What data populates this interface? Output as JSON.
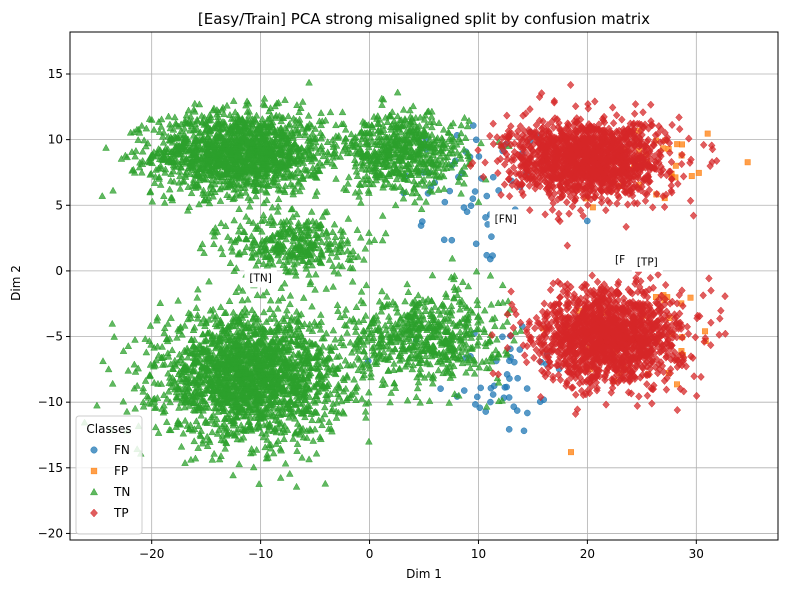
{
  "chart_data": {
    "type": "scatter",
    "title": "[Easy/Train] PCA strong misaligned split by confusion matrix",
    "xlabel": "Dim 1",
    "ylabel": "Dim 2",
    "xlim": [
      -27.5,
      37.5
    ],
    "ylim": [
      -20.5,
      18.2
    ],
    "xticks": [
      -20,
      -10,
      0,
      10,
      20,
      30
    ],
    "yticks": [
      -20,
      -15,
      -10,
      -5,
      0,
      5,
      10,
      15
    ],
    "xtick_labels": [
      "−20",
      "−10",
      "0",
      "10",
      "20",
      "30"
    ],
    "ytick_labels": [
      "−20",
      "−15",
      "−10",
      "−5",
      "0",
      "5",
      "10",
      "15"
    ],
    "grid": true,
    "legend": {
      "title": "Classes",
      "placement": "lower-left"
    },
    "series": [
      {
        "name": "FN",
        "color": "#1f77b4",
        "marker": "circle",
        "clusters": [
          {
            "cx": 10,
            "cy": 6,
            "sx": 6,
            "sy": 5,
            "n": 55
          },
          {
            "cx": 12,
            "cy": -8,
            "sx": 5,
            "sy": 4,
            "n": 45
          }
        ]
      },
      {
        "name": "FP",
        "color": "#ff7f0e",
        "marker": "square",
        "clusters": [
          {
            "cx": 25,
            "cy": 8,
            "sx": 7,
            "sy": 3,
            "n": 40
          },
          {
            "cx": 25,
            "cy": -5,
            "sx": 7,
            "sy": 3.5,
            "n": 40
          }
        ]
      },
      {
        "name": "TN",
        "color": "#2ca02c",
        "marker": "triangle",
        "clusters": [
          {
            "cx": -12,
            "cy": 9,
            "sx": 6.5,
            "sy": 2.6,
            "n": 1500
          },
          {
            "cx": -11,
            "cy": -8,
            "sx": 7,
            "sy": 4,
            "n": 2000
          },
          {
            "cx": 3,
            "cy": 9,
            "sx": 5,
            "sy": 2.5,
            "n": 600
          },
          {
            "cx": 5,
            "cy": -5,
            "sx": 6,
            "sy": 3,
            "n": 600
          },
          {
            "cx": -7,
            "cy": 2,
            "sx": 5,
            "sy": 2,
            "n": 350
          }
        ]
      },
      {
        "name": "TP",
        "color": "#d62728",
        "marker": "diamond",
        "clusters": [
          {
            "cx": 20,
            "cy": 8.5,
            "sx": 6,
            "sy": 2.5,
            "n": 1500
          },
          {
            "cx": 22,
            "cy": -5,
            "sx": 5.5,
            "sy": 3,
            "n": 1500
          }
        ]
      }
    ],
    "annotations": [
      {
        "text": "[TN]",
        "x": -10,
        "y": -0.5
      },
      {
        "text": "[FN]",
        "x": 12.5,
        "y": 4
      },
      {
        "text": "[F",
        "x": 23,
        "y": 0.9
      },
      {
        "text": "[TP]",
        "x": 25.5,
        "y": 0.7
      }
    ]
  }
}
